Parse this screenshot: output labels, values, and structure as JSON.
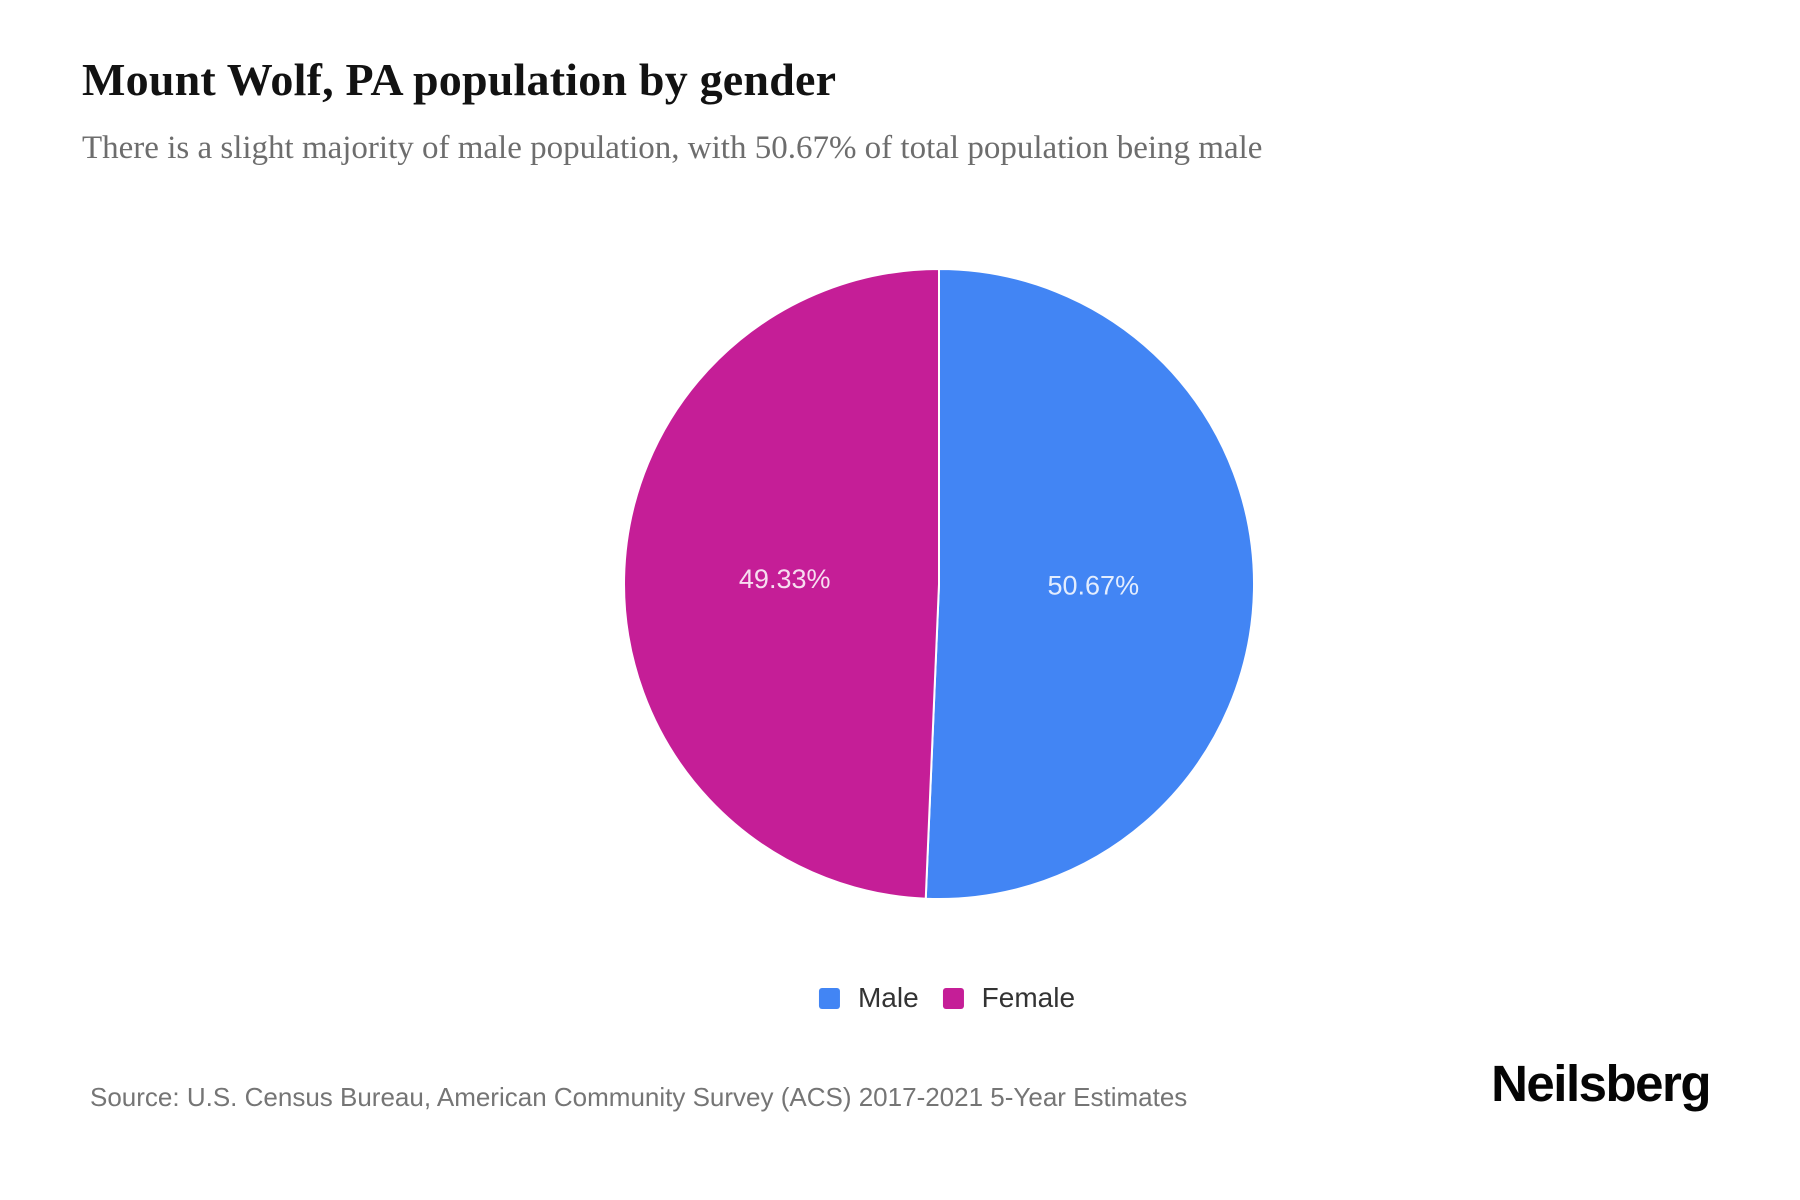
{
  "page": {
    "title": "Mount Wolf, PA population by gender",
    "subtitle": "There is a slight majority of male population, with 50.67% of total population being male",
    "source": "Source: U.S. Census Bureau, American Community Survey (ACS) 2017-2021 5-Year Estimates",
    "brand": "Neilsberg"
  },
  "chart_data": {
    "type": "pie",
    "title": "Mount Wolf, PA population by gender",
    "subtitle": "There is a slight majority of male population, with 50.67% of total population being male",
    "start_angle_deg": 0,
    "direction": "clockwise",
    "slices": [
      {
        "label": "Male",
        "value": 50.67,
        "display": "50.67%",
        "color": "#4285F4"
      },
      {
        "label": "Female",
        "value": 49.33,
        "display": "49.33%",
        "color": "#C51E97"
      }
    ],
    "slice_border_color": "#ffffff",
    "slice_label_color": "rgba(255,255,255,0.85)",
    "legend_position": "bottom-center",
    "legend": [
      "Male",
      "Female"
    ]
  }
}
